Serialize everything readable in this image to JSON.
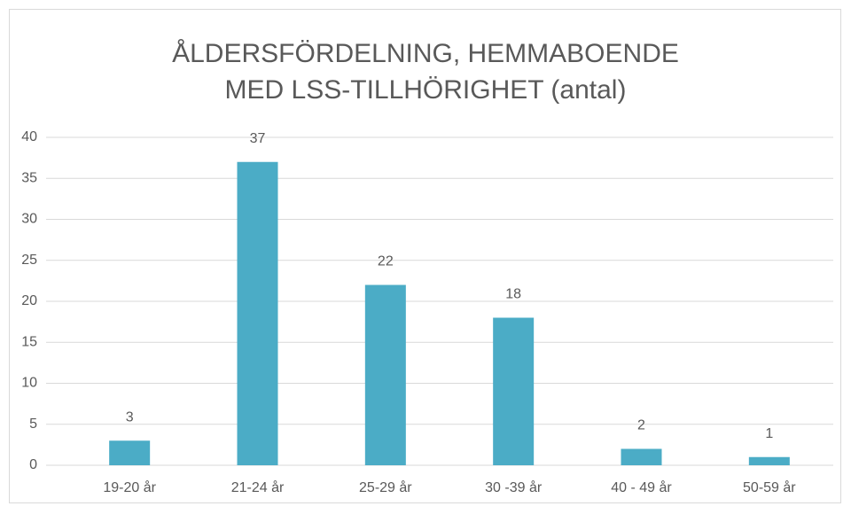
{
  "chart_data": {
    "type": "bar",
    "title": [
      "ÅLDERSFÖRDELNING, HEMMABOENDE",
      "MED LSS-TILLHÖRIGHET (antal)"
    ],
    "categories": [
      "19-20 år",
      "21-24 år",
      "25-29 år",
      "30 -39 år",
      "40 - 49 år",
      "50-59 år"
    ],
    "values": [
      3,
      37,
      22,
      18,
      2,
      1
    ],
    "color": "#4bacc6",
    "ylim": [
      0,
      40
    ],
    "yticks": [
      0,
      5,
      10,
      15,
      20,
      25,
      30,
      35,
      40
    ],
    "grid": true
  }
}
